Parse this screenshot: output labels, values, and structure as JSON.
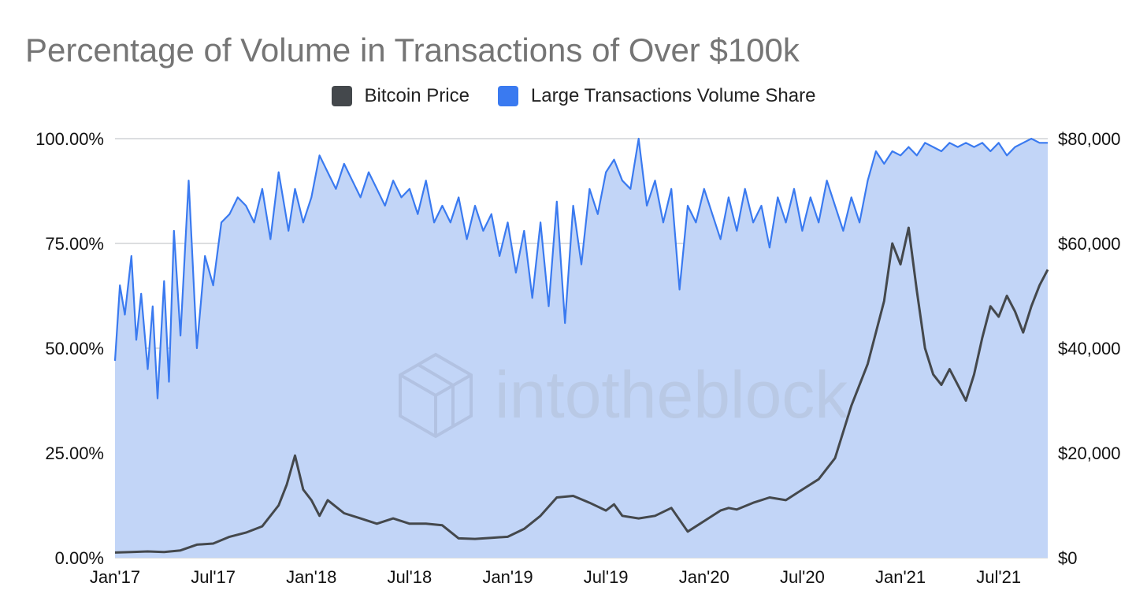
{
  "chart_data": {
    "type": "area",
    "title": "Percentage of Volume in Transactions of Over $100k",
    "watermark": "intotheblock",
    "legend_position": "top-center",
    "legend": [
      {
        "name": "Bitcoin Price",
        "color": "#44484c"
      },
      {
        "name": "Large Transactions Volume Share",
        "color": "#3a7af0"
      }
    ],
    "x_axis": {
      "range": [
        "2017-01",
        "2021-10"
      ],
      "tick_labels": [
        "Jan'17",
        "Jul'17",
        "Jan'18",
        "Jul'18",
        "Jan'19",
        "Jul'19",
        "Jan'20",
        "Jul'20",
        "Jan'21",
        "Jul'21"
      ]
    },
    "y_left": {
      "label": "Large Transactions Volume Share",
      "range": [
        0,
        100
      ],
      "tick_labels": [
        "0.00%",
        "25.00%",
        "50.00%",
        "75.00%",
        "100.00%"
      ]
    },
    "y_right": {
      "label": "Bitcoin Price",
      "range": [
        0,
        80000
      ],
      "tick_labels": [
        "$0",
        "$20,000",
        "$40,000",
        "$60,000",
        "$80,000"
      ]
    },
    "grid": true,
    "series": [
      {
        "name": "Large Transactions Volume Share",
        "axis": "left",
        "style": "area",
        "color": "#3a7af0",
        "fill": "#c2d5f7",
        "x": [
          0,
          0.3,
          0.6,
          1,
          1.3,
          1.6,
          2,
          2.3,
          2.6,
          3,
          3.3,
          3.6,
          4,
          4.5,
          5,
          5.5,
          6,
          6.5,
          7,
          7.5,
          8,
          8.5,
          9,
          9.5,
          10,
          10.3,
          10.6,
          11,
          11.5,
          12,
          12.5,
          13,
          13.5,
          14,
          14.5,
          15,
          15.5,
          16,
          16.5,
          17,
          17.5,
          18,
          18.5,
          19,
          19.5,
          20,
          20.5,
          21,
          21.5,
          22,
          22.5,
          23,
          23.5,
          24,
          24.5,
          25,
          25.5,
          26,
          26.5,
          27,
          27.5,
          28,
          28.5,
          29,
          29.5,
          30,
          30.5,
          31,
          31.5,
          32,
          32.5,
          33,
          33.5,
          34,
          34.5,
          35,
          35.5,
          36,
          36.5,
          37,
          37.5,
          38,
          38.5,
          39,
          39.5,
          40,
          40.5,
          41,
          41.5,
          42,
          42.5,
          43,
          43.5,
          44,
          44.5,
          45,
          45.5,
          46,
          46.5,
          47,
          47.5,
          48,
          48.5,
          49,
          49.5,
          50,
          50.5,
          51,
          51.5,
          52,
          52.5,
          53,
          53.5,
          54,
          54.5,
          55,
          55.5,
          56,
          56.5,
          57
        ],
        "values": [
          47,
          65,
          58,
          72,
          52,
          63,
          45,
          60,
          38,
          66,
          42,
          78,
          53,
          90,
          50,
          72,
          65,
          80,
          82,
          86,
          84,
          80,
          88,
          76,
          92,
          85,
          78,
          88,
          80,
          86,
          96,
          92,
          88,
          94,
          90,
          86,
          92,
          88,
          84,
          90,
          86,
          88,
          82,
          90,
          80,
          84,
          80,
          86,
          76,
          84,
          78,
          82,
          72,
          80,
          68,
          78,
          62,
          80,
          60,
          85,
          56,
          84,
          70,
          88,
          82,
          92,
          95,
          90,
          88,
          100,
          84,
          90,
          80,
          88,
          64,
          84,
          80,
          88,
          82,
          76,
          86,
          78,
          88,
          80,
          84,
          74,
          86,
          80,
          88,
          78,
          86,
          80,
          90,
          84,
          78,
          86,
          80,
          90,
          97,
          94,
          97,
          96,
          98,
          96,
          99,
          98,
          97,
          99,
          98,
          99,
          98,
          99,
          97,
          99,
          96,
          98,
          99,
          100,
          99,
          99
        ]
      },
      {
        "name": "Bitcoin Price",
        "axis": "right",
        "style": "line",
        "color": "#44484c",
        "x": [
          0,
          1,
          2,
          3,
          4,
          5,
          6,
          7,
          8,
          9,
          10,
          10.5,
          11,
          11.5,
          12,
          12.5,
          13,
          14,
          15,
          16,
          17,
          18,
          19,
          20,
          21,
          22,
          23,
          24,
          25,
          26,
          27,
          28,
          29,
          30,
          30.5,
          31,
          32,
          33,
          34,
          35,
          36,
          37,
          37.5,
          38,
          39,
          40,
          41,
          42,
          43,
          44,
          45,
          46,
          47,
          47.5,
          48,
          48.5,
          49,
          49.5,
          50,
          50.5,
          51,
          51.5,
          52,
          52.5,
          53,
          53.5,
          54,
          54.5,
          55,
          55.5,
          56,
          56.5,
          57
        ],
        "values": [
          1000,
          1100,
          1200,
          1100,
          1400,
          2500,
          2700,
          4000,
          4800,
          6000,
          10000,
          14000,
          19500,
          13000,
          11000,
          8000,
          11000,
          8500,
          7500,
          6500,
          7500,
          6500,
          6500,
          6200,
          3700,
          3600,
          3800,
          4000,
          5500,
          8000,
          11500,
          11800,
          10500,
          9000,
          10200,
          8000,
          7500,
          8000,
          9500,
          5000,
          7000,
          9000,
          9500,
          9200,
          10500,
          11500,
          11000,
          13000,
          15000,
          19000,
          29000,
          37000,
          49000,
          60000,
          56000,
          63000,
          51000,
          40000,
          35000,
          33000,
          36000,
          33000,
          30000,
          35000,
          42000,
          48000,
          46000,
          50000,
          47000,
          43000,
          48000,
          52000,
          55000
        ]
      }
    ]
  }
}
